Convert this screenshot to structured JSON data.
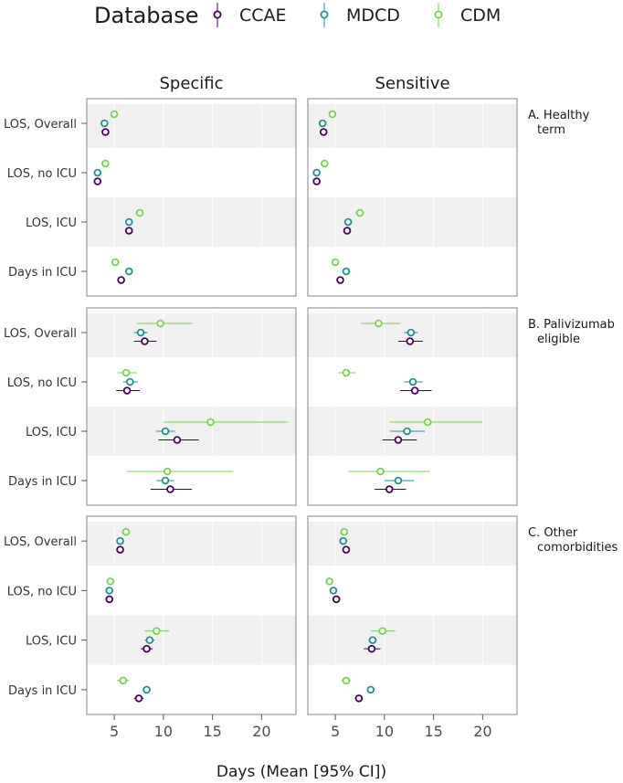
{
  "chart_data": {
    "type": "forest",
    "legend": {
      "title": "Database",
      "entries": [
        {
          "name": "CCAE",
          "color": "#440154"
        },
        {
          "name": "MDCD",
          "color": "#21908C"
        },
        {
          "name": "CDM",
          "color": "#7AD151"
        }
      ]
    },
    "column_titles": [
      "Specific",
      "Sensitive"
    ],
    "row_labels": [
      "LOS, Overall",
      "LOS, no ICU",
      "LOS, ICU",
      "Days in ICU"
    ],
    "xlabel": "Days (Mean [95% CI])",
    "xlim": [
      2.2,
      23.5
    ],
    "xticks": [
      5,
      10,
      15,
      20
    ],
    "xtick_labels": [
      "5",
      "10",
      "15",
      "20"
    ],
    "panels": [
      {
        "strip_label_lines": [
          "A. Healthy",
          "term"
        ],
        "specific": [
          {
            "CCAE": [
              4.1,
              4.0,
              4.2
            ],
            "MDCD": [
              4.0,
              3.9,
              4.1
            ],
            "CDM": [
              5.0,
              4.8,
              5.2
            ]
          },
          {
            "CCAE": [
              3.3,
              3.2,
              3.4
            ],
            "MDCD": [
              3.3,
              3.2,
              3.4
            ],
            "CDM": [
              4.1,
              3.9,
              4.3
            ]
          },
          {
            "CCAE": [
              6.5,
              6.3,
              6.7
            ],
            "MDCD": [
              6.5,
              6.3,
              6.7
            ],
            "CDM": [
              7.6,
              7.2,
              8.0
            ]
          },
          {
            "CCAE": [
              5.7,
              5.5,
              5.9
            ],
            "MDCD": [
              6.5,
              6.3,
              6.7
            ],
            "CDM": [
              5.1,
              4.9,
              5.3
            ]
          }
        ],
        "sensitive": [
          {
            "CCAE": [
              3.8,
              3.7,
              3.9
            ],
            "MDCD": [
              3.7,
              3.6,
              3.8
            ],
            "CDM": [
              4.7,
              4.5,
              4.9
            ]
          },
          {
            "CCAE": [
              3.1,
              3.0,
              3.2
            ],
            "MDCD": [
              3.1,
              3.0,
              3.2
            ],
            "CDM": [
              3.9,
              3.7,
              4.1
            ]
          },
          {
            "CCAE": [
              6.2,
              6.0,
              6.4
            ],
            "MDCD": [
              6.3,
              6.1,
              6.5
            ],
            "CDM": [
              7.5,
              7.1,
              7.9
            ]
          },
          {
            "CCAE": [
              5.5,
              5.3,
              5.7
            ],
            "MDCD": [
              6.1,
              5.9,
              6.3
            ],
            "CDM": [
              5.0,
              4.8,
              5.2
            ]
          }
        ]
      },
      {
        "strip_label_lines": [
          "B. Palivizumab",
          "eligible"
        ],
        "specific": [
          {
            "CCAE": [
              8.1,
              7.0,
              9.3
            ],
            "MDCD": [
              7.7,
              7.0,
              8.4
            ],
            "CDM": [
              9.7,
              7.3,
              13.0
            ]
          },
          {
            "CCAE": [
              6.3,
              5.2,
              7.6
            ],
            "MDCD": [
              6.6,
              5.9,
              7.4
            ],
            "CDM": [
              6.2,
              5.3,
              7.3
            ]
          },
          {
            "CCAE": [
              11.4,
              9.5,
              13.6
            ],
            "MDCD": [
              10.2,
              9.3,
              11.2
            ],
            "CDM": [
              14.8,
              10.0,
              22.7
            ]
          },
          {
            "CCAE": [
              10.7,
              8.7,
              12.9
            ],
            "MDCD": [
              10.2,
              9.3,
              11.1
            ],
            "CDM": [
              10.4,
              6.3,
              17.1
            ]
          }
        ],
        "sensitive": [
          {
            "CCAE": [
              12.6,
              11.4,
              13.9
            ],
            "MDCD": [
              12.7,
              12.0,
              13.4
            ],
            "CDM": [
              9.4,
              7.6,
              11.6
            ]
          },
          {
            "CCAE": [
              13.1,
              11.6,
              14.8
            ],
            "MDCD": [
              12.9,
              12.0,
              13.9
            ],
            "CDM": [
              6.1,
              5.3,
              7.1
            ]
          },
          {
            "CCAE": [
              11.4,
              9.8,
              13.3
            ],
            "MDCD": [
              12.3,
              10.6,
              14.1
            ],
            "CDM": [
              14.4,
              10.5,
              20.0
            ]
          },
          {
            "CCAE": [
              10.5,
              9.0,
              12.2
            ],
            "MDCD": [
              11.4,
              10.0,
              13.0
            ],
            "CDM": [
              9.6,
              6.3,
              14.6
            ]
          }
        ]
      },
      {
        "strip_label_lines": [
          "C. Other",
          "comorbidities"
        ],
        "specific": [
          {
            "CCAE": [
              5.6,
              5.4,
              5.8
            ],
            "MDCD": [
              5.6,
              5.4,
              5.8
            ],
            "CDM": [
              6.2,
              5.8,
              6.6
            ]
          },
          {
            "CCAE": [
              4.5,
              4.4,
              4.6
            ],
            "MDCD": [
              4.5,
              4.4,
              4.6
            ],
            "CDM": [
              4.6,
              4.4,
              4.8
            ]
          },
          {
            "CCAE": [
              8.3,
              7.7,
              8.9
            ],
            "MDCD": [
              8.6,
              8.1,
              9.1
            ],
            "CDM": [
              9.3,
              8.1,
              10.6
            ]
          },
          {
            "CCAE": [
              7.5,
              7.0,
              8.0
            ],
            "MDCD": [
              8.3,
              7.9,
              8.7
            ],
            "CDM": [
              5.9,
              5.3,
              6.5
            ]
          }
        ],
        "sensitive": [
          {
            "CCAE": [
              6.1,
              5.9,
              6.3
            ],
            "MDCD": [
              5.8,
              5.6,
              6.0
            ],
            "CDM": [
              5.9,
              5.6,
              6.2
            ]
          },
          {
            "CCAE": [
              5.1,
              4.9,
              5.3
            ],
            "MDCD": [
              4.8,
              4.6,
              5.0
            ],
            "CDM": [
              4.4,
              4.1,
              4.7
            ]
          },
          {
            "CCAE": [
              8.7,
              7.9,
              9.6
            ],
            "MDCD": [
              8.8,
              8.4,
              9.2
            ],
            "CDM": [
              9.8,
              8.6,
              11.1
            ]
          },
          {
            "CCAE": [
              7.4,
              7.0,
              7.8
            ],
            "MDCD": [
              8.6,
              8.2,
              9.0
            ],
            "CDM": [
              6.1,
              5.6,
              6.6
            ]
          }
        ]
      }
    ]
  }
}
